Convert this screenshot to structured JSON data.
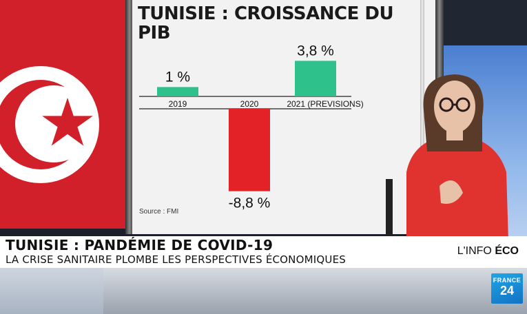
{
  "chart_data": {
    "type": "bar",
    "title": "TUNISIE : CROISSANCE DU PIB",
    "categories": [
      "2019",
      "2020",
      "2021 (PREVISIONS)"
    ],
    "values": [
      1,
      -8.8,
      3.8
    ],
    "value_labels": [
      "1 %",
      "-8,8 %",
      "3,8 %"
    ],
    "bar_colors": [
      "#2fc18c",
      "#e32227",
      "#2fc18c"
    ],
    "source": "Source : FMI",
    "ylim": [
      -8.8,
      3.8
    ]
  },
  "banner": {
    "headline": "TUNISIE : PANDÉMIE DE COVID-19",
    "subheadline": "LA CRISE SANITAIRE PLOMBE LES PERSPECTIVES ÉCONOMIQUES",
    "tag_prefix": "L'INFO",
    "tag_strong": "ÉCO"
  },
  "logo": {
    "name": "FRANCE",
    "number": "24"
  },
  "colors": {
    "flag_red": "#d2202a",
    "positive_bar": "#2fc18c",
    "negative_bar": "#e32227",
    "logo_blue": "#1d96dc"
  }
}
